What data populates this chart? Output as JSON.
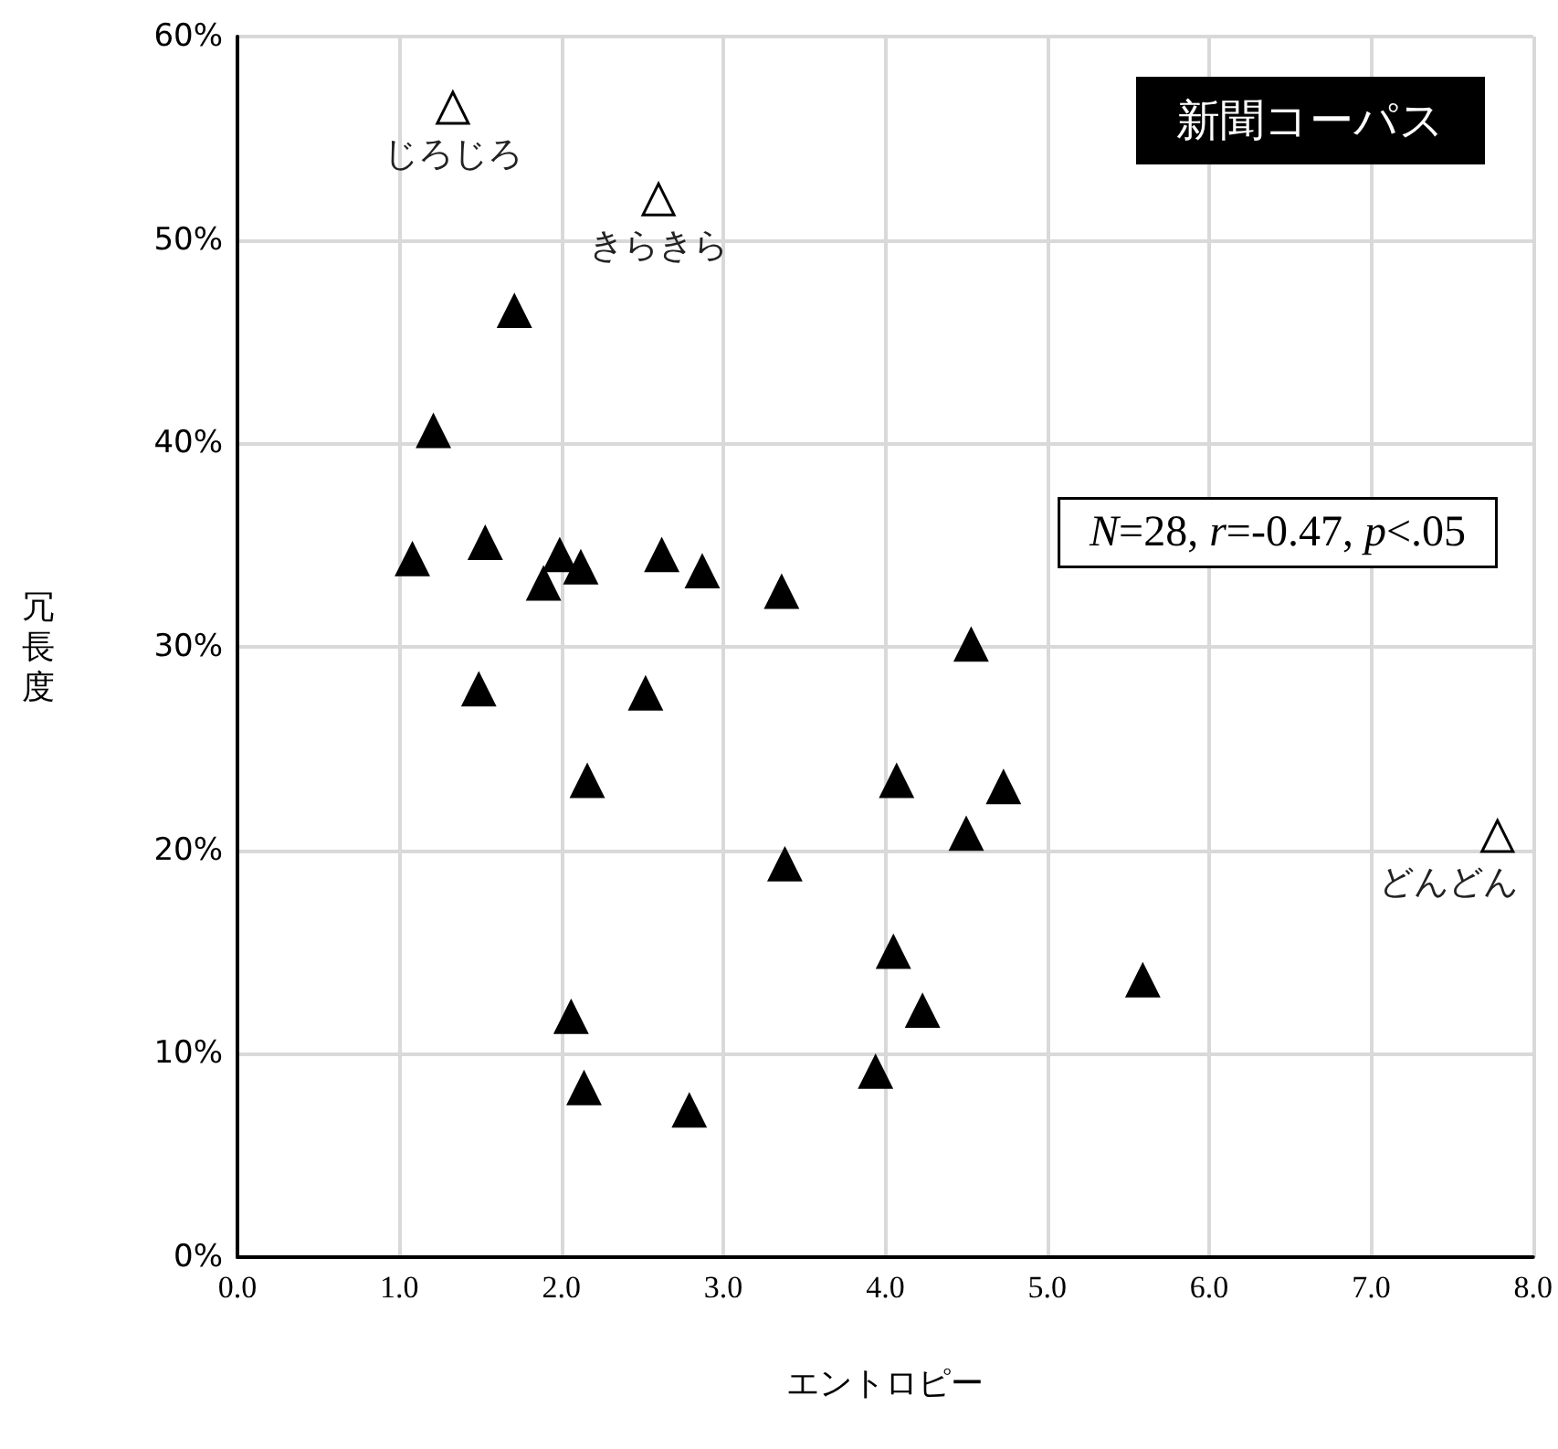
{
  "chart_data": {
    "type": "scatter",
    "title": "新聞コーパス",
    "xlabel": "エントロピー",
    "ylabel": "冗長度",
    "annotations": [
      "N=28, r=-0.47, p<.05",
      {
        "text": "じろじろ",
        "x": 1.33,
        "y": 56.5
      },
      {
        "text": "きらきら",
        "x": 2.6,
        "y": 52.0
      },
      {
        "text": "どんどん",
        "x": 7.78,
        "y": 20.7
      }
    ],
    "series": [
      {
        "color": "#000000",
        "x": [
          1.08,
          1.21,
          1.71,
          1.53,
          1.99,
          1.89,
          2.12,
          2.62,
          2.87,
          3.36,
          1.49,
          2.52,
          2.16,
          2.06,
          2.14,
          2.79,
          4.53,
          4.07,
          4.73,
          4.5,
          3.38,
          4.05,
          4.23,
          3.94,
          5.59
        ],
        "values": [
          34.3,
          40.6,
          46.5,
          35.1,
          34.5,
          33.1,
          33.9,
          34.5,
          33.7,
          32.7,
          27.9,
          27.7,
          23.4,
          11.8,
          8.3,
          7.2,
          30.1,
          23.4,
          23.1,
          20.8,
          19.3,
          15.0,
          12.1,
          9.1,
          13.6
        ]
      },
      {
        "color": "#ffffff",
        "x": [
          1.33,
          2.6,
          7.78
        ],
        "values": [
          56.5,
          52.0,
          20.7
        ]
      }
    ],
    "marker": "triangle",
    "xlim": [
      0,
      8
    ],
    "xticks": [
      {
        "value": 0,
        "label": "0.0"
      },
      {
        "value": 1,
        "label": "1.0"
      },
      {
        "value": 2,
        "label": "2.0"
      },
      {
        "value": 3,
        "label": "3.0"
      },
      {
        "value": 4,
        "label": "4.0"
      },
      {
        "value": 5,
        "label": "5.0"
      },
      {
        "value": 6,
        "label": "6.0"
      },
      {
        "value": 7,
        "label": "7.0"
      },
      {
        "value": 8,
        "label": "8.0"
      }
    ],
    "ylim": [
      0,
      60
    ],
    "yticks": [
      {
        "value": 0,
        "label": "0%"
      },
      {
        "value": 10,
        "label": "10%"
      },
      {
        "value": 20,
        "label": "20%"
      },
      {
        "value": 30,
        "label": "30%"
      },
      {
        "value": 40,
        "label": "40%"
      },
      {
        "value": 50,
        "label": "50%"
      },
      {
        "value": 60,
        "label": "60%"
      }
    ],
    "grid": true
  }
}
